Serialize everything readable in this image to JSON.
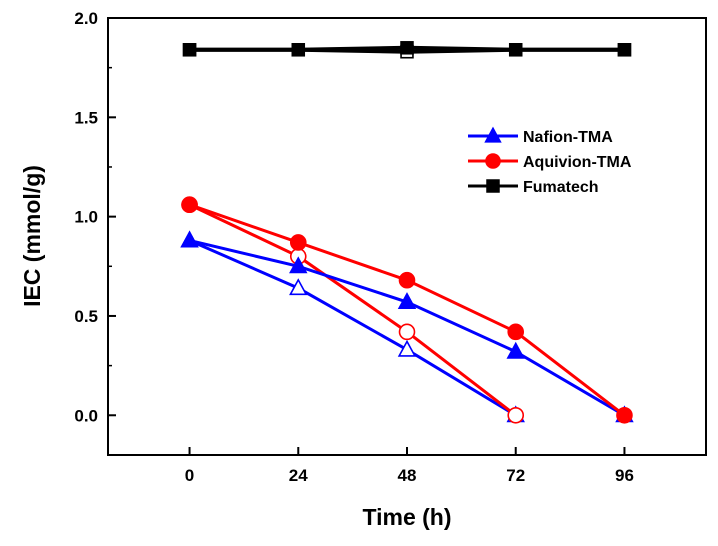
{
  "chart_data": {
    "type": "line",
    "title": "",
    "xlabel": "Time (h)",
    "ylabel": "IEC (mmol/g)",
    "xlim": [
      -18,
      114
    ],
    "ylim": [
      -0.2,
      2.0
    ],
    "xticks": [
      0,
      24,
      48,
      72,
      96
    ],
    "yticks": [
      0.0,
      0.5,
      1.0,
      1.5,
      2.0
    ],
    "xtick_labels": [
      "0",
      "24",
      "48",
      "72",
      "96"
    ],
    "ytick_labels": [
      "0.0",
      "0.5",
      "1.0",
      "1.5",
      "2.0"
    ],
    "grid": false,
    "legend_position": "top-right",
    "series": [
      {
        "name": "Nafion-TMA",
        "color": "#0000ff",
        "marker": "triangle",
        "filled": true,
        "x": [
          0,
          24,
          48,
          72,
          96
        ],
        "y": [
          0.88,
          0.75,
          0.57,
          0.32,
          0.0
        ]
      },
      {
        "name": "Aquivion-TMA",
        "color": "#ff0000",
        "marker": "circle",
        "filled": true,
        "x": [
          0,
          24,
          48,
          72,
          96
        ],
        "y": [
          1.06,
          0.87,
          0.68,
          0.42,
          0.0
        ]
      },
      {
        "name": "Fumatech",
        "color": "#000000",
        "marker": "square",
        "filled": true,
        "x": [
          0,
          24,
          48,
          72,
          96
        ],
        "y": [
          1.84,
          1.84,
          1.85,
          1.84,
          1.84
        ]
      },
      {
        "name": "",
        "color": "#0000ff",
        "marker": "triangle",
        "filled": false,
        "x": [
          0,
          24,
          48,
          72
        ],
        "y": [
          0.88,
          0.64,
          0.33,
          0.0
        ]
      },
      {
        "name": "",
        "color": "#ff0000",
        "marker": "circle",
        "filled": false,
        "x": [
          0,
          24,
          48,
          72
        ],
        "y": [
          1.06,
          0.8,
          0.42,
          0.0
        ]
      },
      {
        "name": "",
        "color": "#000000",
        "marker": "square",
        "filled": false,
        "x": [
          0,
          24,
          48,
          72,
          96
        ],
        "y": [
          1.84,
          1.84,
          1.83,
          1.84,
          1.84
        ]
      }
    ]
  }
}
